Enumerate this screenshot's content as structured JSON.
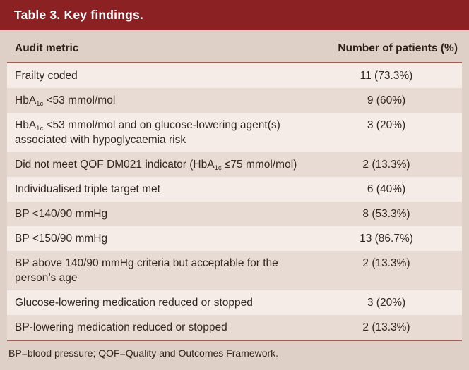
{
  "title_bar": {
    "title": "Table 3. Key findings."
  },
  "table": {
    "columns": {
      "metric": "Audit metric",
      "patients": "Number of patients (%)"
    },
    "rows": [
      {
        "metric": [
          {
            "t": "Frailty coded"
          }
        ],
        "value": "11 (73.3%)"
      },
      {
        "metric": [
          {
            "t": "HbA"
          },
          {
            "s": "1c"
          },
          {
            "t": " <53 mmol/mol"
          }
        ],
        "value": "9 (60%)"
      },
      {
        "metric": [
          {
            "t": "HbA"
          },
          {
            "s": "1c"
          },
          {
            "t": " <53 mmol/mol and on glucose-lowering agent(s) associated with hypoglycaemia risk"
          }
        ],
        "value": "3 (20%)"
      },
      {
        "metric": [
          {
            "t": "Did not meet QOF DM021 indicator (HbA"
          },
          {
            "s": "1c"
          },
          {
            "t": " ≤75 mmol/mol)"
          }
        ],
        "value": "2 (13.3%)"
      },
      {
        "metric": [
          {
            "t": "Individualised triple target met"
          }
        ],
        "value": "6 (40%)"
      },
      {
        "metric": [
          {
            "t": "BP <140/90 mmHg"
          }
        ],
        "value": "8 (53.3%)"
      },
      {
        "metric": [
          {
            "t": "BP <150/90 mmHg"
          }
        ],
        "value": "13 (86.7%)"
      },
      {
        "metric": [
          {
            "t": "BP above 140/90 mmHg criteria but acceptable for the person’s age"
          }
        ],
        "value": "2 (13.3%)"
      },
      {
        "metric": [
          {
            "t": "Glucose-lowering medication reduced or stopped"
          }
        ],
        "value": "3 (20%)"
      },
      {
        "metric": [
          {
            "t": "BP-lowering medication reduced or stopped"
          }
        ],
        "value": "2 (13.3%)"
      }
    ],
    "footnote": "BP=blood pressure; QOF=Quality and Outcomes Framework."
  },
  "colors": {
    "title_bar_bg": "#8b2123",
    "page_bg": "#decfc7",
    "row_light": "#f5ece8",
    "row_dark": "#e8dbd4",
    "rule": "#9e6157",
    "title_text": "#ffffff",
    "body_text": "#33261f"
  }
}
